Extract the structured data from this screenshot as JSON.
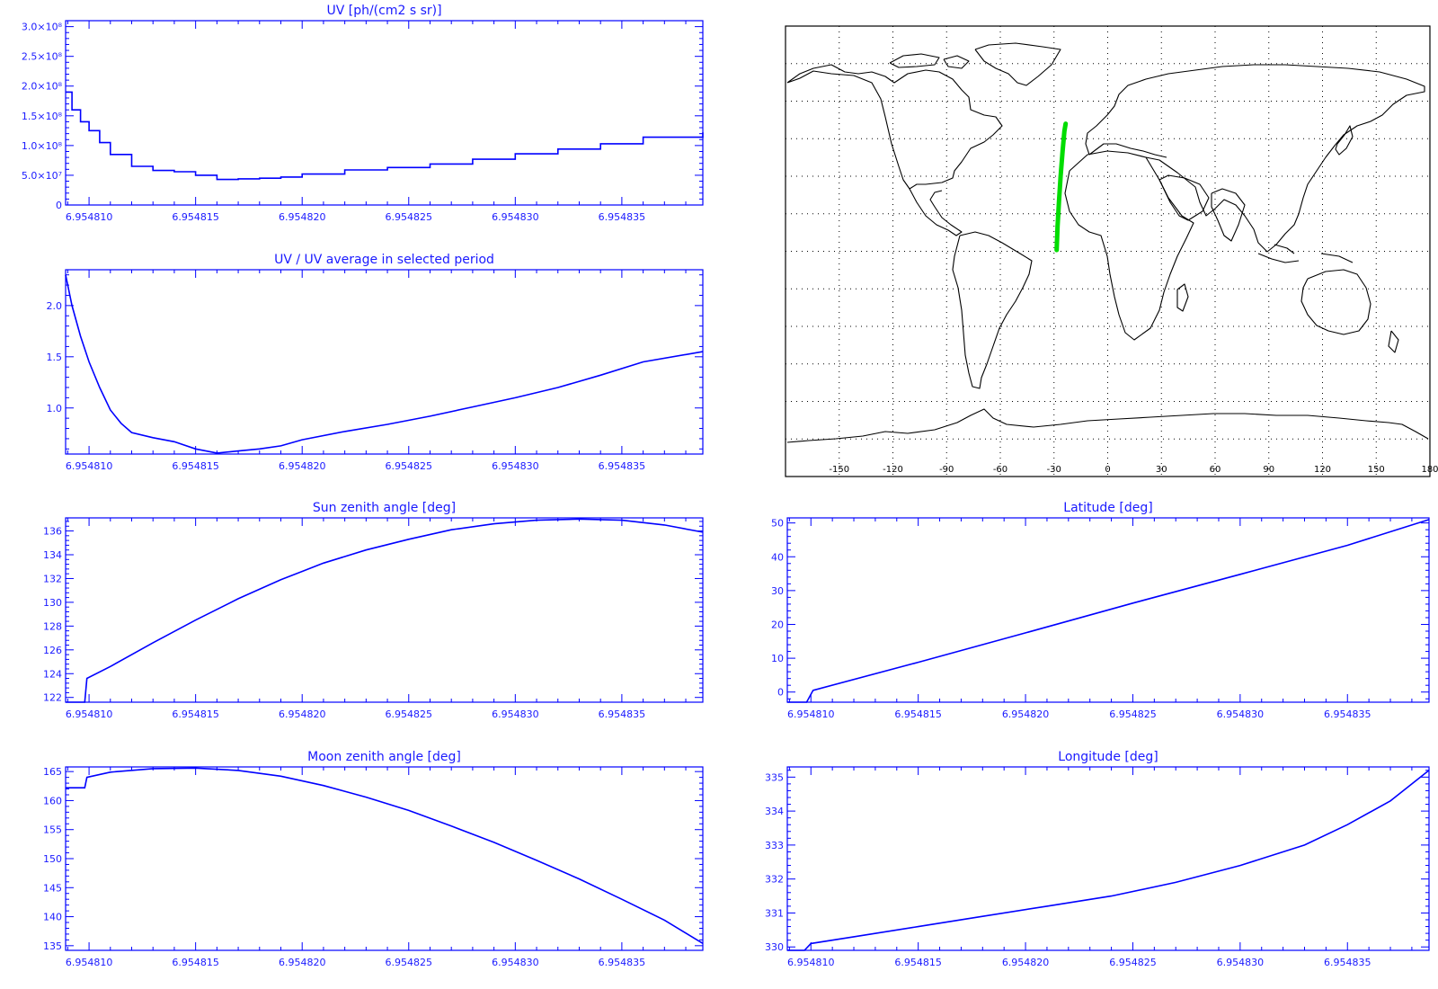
{
  "colors": {
    "axis": "#0000ff",
    "line": "#0000ff",
    "map": "#000000",
    "track": "#00dd00"
  },
  "chart_data": [
    {
      "id": "uv",
      "type": "line",
      "title": "UV [ph/(cm2 s sr)]",
      "xlim": [
        6.9548089,
        6.9548388
      ],
      "x_ticks": [
        6.95481,
        6.954815,
        6.95482,
        6.954825,
        6.95483,
        6.954835
      ],
      "x_tick_labels": [
        "6.954810",
        "6.954815",
        "6.954820",
        "6.954825",
        "6.954830",
        "6.954835"
      ],
      "ylim": [
        0,
        310000000.0
      ],
      "y_ticks": [
        0,
        50000000.0,
        100000000.0,
        150000000.0,
        200000000.0,
        250000000.0,
        300000000.0
      ],
      "y_tick_labels": [
        "0",
        "5.0×10⁷",
        "1.0×10⁸",
        "1.5×10⁸",
        "2.0×10⁸",
        "2.5×10⁸",
        "3.0×10⁸"
      ],
      "style": "step",
      "x": [
        6.9548089,
        6.9548092,
        6.9548096,
        6.95481,
        6.9548105,
        6.954811,
        6.954812,
        6.954813,
        6.954814,
        6.954815,
        6.954816,
        6.954817,
        6.954818,
        6.954819,
        6.95482,
        6.954822,
        6.954824,
        6.954826,
        6.954828,
        6.95483,
        6.954832,
        6.954834,
        6.954836,
        6.9548388
      ],
      "y": [
        190000000.0,
        160000000.0,
        140000000.0,
        125000000.0,
        105000000.0,
        85000000.0,
        65000000.0,
        58000000.0,
        56000000.0,
        50000000.0,
        43000000.0,
        44000000.0,
        45000000.0,
        47000000.0,
        52000000.0,
        59000000.0,
        63000000.0,
        69000000.0,
        77000000.0,
        86000000.0,
        94000000.0,
        103000000.0,
        114000000.0,
        122000000.0
      ]
    },
    {
      "id": "uvratio",
      "type": "line",
      "title": "UV / UV average in selected period",
      "xlim": [
        6.9548089,
        6.9548388
      ],
      "x_ticks": [
        6.95481,
        6.954815,
        6.95482,
        6.954825,
        6.95483,
        6.954835
      ],
      "x_tick_labels": [
        "6.954810",
        "6.954815",
        "6.954820",
        "6.954825",
        "6.954830",
        "6.954835"
      ],
      "ylim": [
        0.55,
        2.35
      ],
      "y_ticks": [
        1.0,
        1.5,
        2.0
      ],
      "y_tick_labels": [
        "1.0",
        "1.5",
        "2.0"
      ],
      "x": [
        6.9548089,
        6.9548092,
        6.9548096,
        6.95481,
        6.9548105,
        6.954811,
        6.9548115,
        6.954812,
        6.954813,
        6.954814,
        6.954815,
        6.954816,
        6.954817,
        6.954818,
        6.954819,
        6.95482,
        6.954822,
        6.954824,
        6.954826,
        6.954828,
        6.95483,
        6.954832,
        6.954834,
        6.954836,
        6.9548388
      ],
      "y": [
        2.3,
        2.0,
        1.7,
        1.45,
        1.2,
        0.98,
        0.85,
        0.76,
        0.71,
        0.67,
        0.6,
        0.56,
        0.58,
        0.6,
        0.63,
        0.69,
        0.77,
        0.84,
        0.92,
        1.01,
        1.1,
        1.2,
        1.32,
        1.45,
        1.55
      ]
    },
    {
      "id": "sun",
      "type": "line",
      "title": "Sun zenith angle [deg]",
      "xlim": [
        6.9548089,
        6.9548388
      ],
      "x_ticks": [
        6.95481,
        6.954815,
        6.95482,
        6.954825,
        6.95483,
        6.954835
      ],
      "x_tick_labels": [
        "6.954810",
        "6.954815",
        "6.954820",
        "6.954825",
        "6.954830",
        "6.954835"
      ],
      "ylim": [
        121.6,
        137.1
      ],
      "y_ticks": [
        122,
        124,
        126,
        128,
        130,
        132,
        134,
        136
      ],
      "y_tick_labels": [
        "122",
        "124",
        "126",
        "128",
        "130",
        "132",
        "134",
        "136"
      ],
      "x": [
        6.9548089,
        6.9548098,
        6.9548099,
        6.954811,
        6.954813,
        6.954815,
        6.954817,
        6.954819,
        6.954821,
        6.954823,
        6.954825,
        6.954827,
        6.954829,
        6.954831,
        6.954833,
        6.954835,
        6.954837,
        6.9548388
      ],
      "y": [
        121.6,
        121.6,
        123.6,
        124.6,
        126.6,
        128.5,
        130.3,
        131.9,
        133.3,
        134.4,
        135.3,
        136.1,
        136.6,
        136.9,
        137.0,
        136.9,
        136.5,
        135.9
      ]
    },
    {
      "id": "lat",
      "type": "line",
      "title": "Latitude [deg]",
      "xlim": [
        6.9548089,
        6.9548388
      ],
      "x_ticks": [
        6.95481,
        6.954815,
        6.95482,
        6.954825,
        6.95483,
        6.954835
      ],
      "x_tick_labels": [
        "6.954810",
        "6.954815",
        "6.954820",
        "6.954825",
        "6.954830",
        "6.954835"
      ],
      "ylim": [
        -3,
        51.5
      ],
      "y_ticks": [
        0,
        10,
        20,
        30,
        40,
        50
      ],
      "y_tick_labels": [
        "0",
        "10",
        "20",
        "30",
        "40",
        "50"
      ],
      "x": [
        6.9548089,
        6.9548098,
        6.9548101,
        6.954815,
        6.95482,
        6.954825,
        6.95483,
        6.954835,
        6.9548388
      ],
      "y": [
        -3,
        -3,
        0.5,
        8.8,
        17.5,
        26.3,
        34.8,
        43.4,
        51.0
      ]
    },
    {
      "id": "moon",
      "type": "line",
      "title": "Moon zenith angle [deg]",
      "xlim": [
        6.9548089,
        6.9548388
      ],
      "x_ticks": [
        6.95481,
        6.954815,
        6.95482,
        6.954825,
        6.95483,
        6.954835
      ],
      "x_tick_labels": [
        "6.954810",
        "6.954815",
        "6.954820",
        "6.954825",
        "6.954830",
        "6.954835"
      ],
      "ylim": [
        134.2,
        165.8
      ],
      "y_ticks": [
        135,
        140,
        145,
        150,
        155,
        160,
        165
      ],
      "y_tick_labels": [
        "135",
        "140",
        "145",
        "150",
        "155",
        "160",
        "165"
      ],
      "x": [
        6.9548089,
        6.9548098,
        6.9548099,
        6.954811,
        6.954813,
        6.954815,
        6.954817,
        6.954819,
        6.954821,
        6.954823,
        6.954825,
        6.954827,
        6.954829,
        6.954831,
        6.954833,
        6.954835,
        6.954837,
        6.9548388
      ],
      "y": [
        162.2,
        162.2,
        164.0,
        164.9,
        165.5,
        165.6,
        165.2,
        164.2,
        162.6,
        160.6,
        158.3,
        155.6,
        152.8,
        149.7,
        146.5,
        143.0,
        139.4,
        135.4
      ]
    },
    {
      "id": "lon",
      "type": "line",
      "title": "Longitude [deg]",
      "xlim": [
        6.9548089,
        6.9548388
      ],
      "x_ticks": [
        6.95481,
        6.954815,
        6.95482,
        6.954825,
        6.95483,
        6.954835
      ],
      "x_tick_labels": [
        "6.954810",
        "6.954815",
        "6.954820",
        "6.954825",
        "6.954830",
        "6.954835"
      ],
      "ylim": [
        329.9,
        335.3
      ],
      "y_ticks": [
        330,
        331,
        332,
        333,
        334,
        335
      ],
      "y_tick_labels": [
        "330",
        "331",
        "332",
        "333",
        "334",
        "335"
      ],
      "x": [
        6.9548089,
        6.9548097,
        6.95481,
        6.954812,
        6.954815,
        6.954818,
        6.954821,
        6.954824,
        6.954827,
        6.95483,
        6.954833,
        6.954835,
        6.954837,
        6.9548388
      ],
      "y": [
        329.9,
        329.9,
        330.1,
        330.3,
        330.6,
        330.9,
        331.2,
        331.5,
        331.9,
        332.4,
        333.0,
        333.6,
        334.3,
        335.2
      ]
    }
  ],
  "map": {
    "lon_ticks": [
      -150,
      -120,
      -90,
      -60,
      -30,
      0,
      30,
      60,
      90,
      120,
      150,
      180
    ],
    "lon_tick_labels": [
      "-150",
      "-120",
      "-90",
      "-60",
      "-30",
      "0",
      "30",
      "60",
      "90",
      "120",
      "150",
      "180"
    ],
    "lat_grid": [
      -75,
      -60,
      -45,
      -30,
      -15,
      0,
      15,
      30,
      45,
      60,
      75
    ],
    "track": {
      "lon": [
        -28.5,
        -28.0,
        -27.2,
        -26.3,
        -25.2,
        -24.2,
        -23.5
      ],
      "lat": [
        0.5,
        10,
        20,
        30,
        40,
        48,
        51
      ]
    }
  }
}
